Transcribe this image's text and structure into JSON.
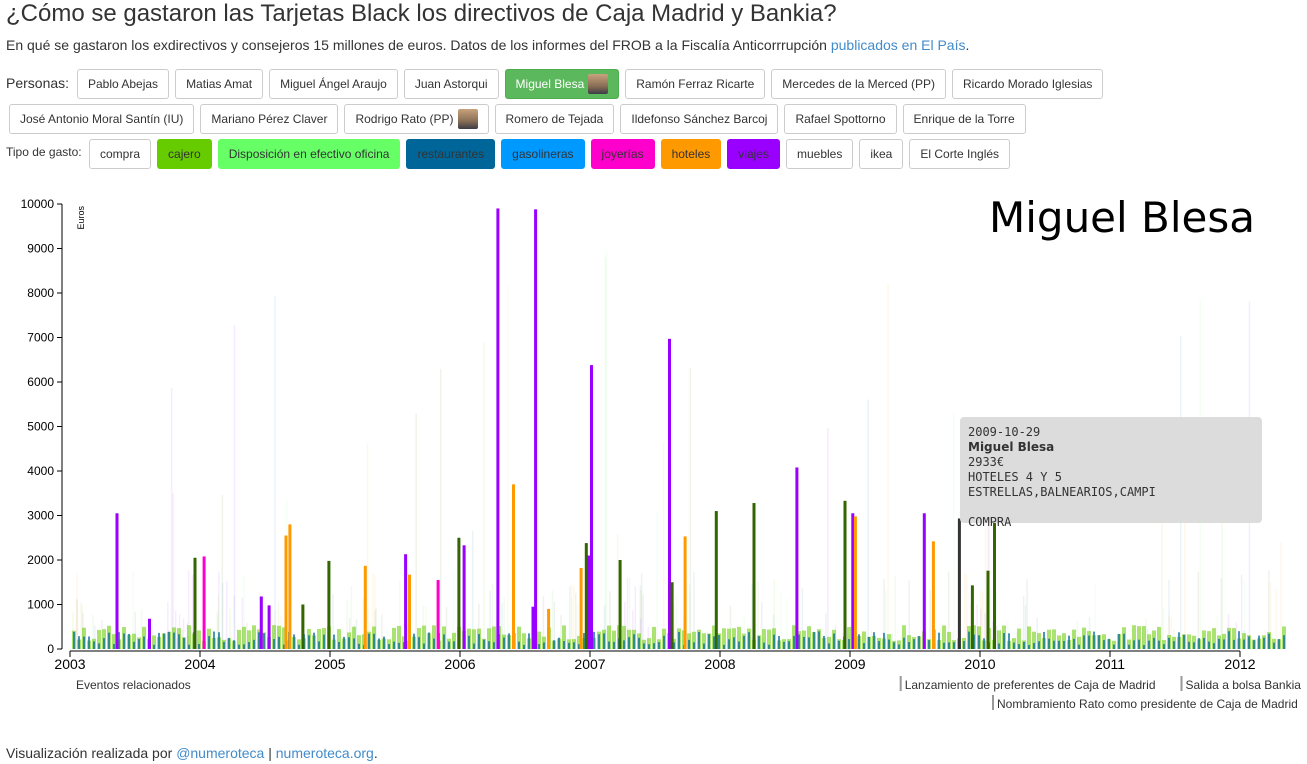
{
  "header": {
    "title": "¿Cómo se gastaron las Tarjetas Black los directivos de Caja Madrid y Bankia?",
    "subtitle_text": "En qué se gastaron los exdirectivos y consejeros 15 millones de euros. Datos de los informes del FROB a la Fiscalía Anticorrrupción ",
    "subtitle_link": "publicados en El País",
    "subtitle_end": "."
  },
  "personas": {
    "label": "Personas:",
    "items": [
      "Pablo Abejas",
      "Matias Amat",
      "Miguel Ángel Araujo",
      "Juan Astorqui",
      "Miguel Blesa",
      "Ramón Ferraz Ricarte",
      "Mercedes de la Merced (PP)",
      "Ricardo Morado Iglesias",
      "José Antonio Moral Santín (IU)",
      "Mariano Pérez Claver",
      "Rodrigo Rato (PP)",
      "Romero de Tejada",
      "Ildefonso Sánchez Barcoj",
      "Rafael Spottorno",
      "Enrique de la Torre"
    ],
    "selected": "Miguel Blesa"
  },
  "gasto": {
    "label": "Tipo de gasto:",
    "items": [
      {
        "label": "compra",
        "color": "#ffffff",
        "text": "#333333"
      },
      {
        "label": "cajero",
        "color": "#66cc00",
        "text": "#333333"
      },
      {
        "label": "Disposición en efectivo oficina",
        "color": "#66ff66",
        "text": "#333333"
      },
      {
        "label": "restaurantes",
        "color": "#006699",
        "text": "#333333"
      },
      {
        "label": "gasolineras",
        "color": "#0099ff",
        "text": "#333333"
      },
      {
        "label": "joyerías",
        "color": "#ff00cc",
        "text": "#333333"
      },
      {
        "label": "hoteles",
        "color": "#ff9900",
        "text": "#333333"
      },
      {
        "label": "viajes",
        "color": "#9900ff",
        "text": "#333333"
      },
      {
        "label": "muebles",
        "color": "#ffffff",
        "text": "#333333"
      },
      {
        "label": "ikea",
        "color": "#ffffff",
        "text": "#333333"
      },
      {
        "label": "El Corte Inglés",
        "color": "#ffffff",
        "text": "#333333"
      }
    ]
  },
  "chart_data": {
    "type": "bar",
    "title": "Miguel Blesa",
    "ylabel": "Euros",
    "ylim": [
      0,
      10000
    ],
    "yticks": [
      0,
      1000,
      2000,
      3000,
      4000,
      5000,
      6000,
      7000,
      8000,
      9000,
      10000
    ],
    "xlim": [
      2003,
      2012.4
    ],
    "xticks": [
      "2003",
      "2004",
      "2005",
      "2006",
      "2007",
      "2008",
      "2009",
      "2010",
      "2011",
      "2012"
    ],
    "colors": {
      "compra": "#336600",
      "cajero": "#66cc00",
      "efectivo": "#66ff66",
      "restaurantes": "#006699",
      "gasolineras": "#0099ff",
      "joyerias": "#ff00cc",
      "hoteles": "#ff9900",
      "viajes": "#9900ff",
      "selected": "#333333"
    },
    "bars": [
      {
        "x": 2003.35,
        "value": 3050,
        "category": "viajes"
      },
      {
        "x": 2003.6,
        "value": 680,
        "category": "viajes"
      },
      {
        "x": 2003.95,
        "value": 2050,
        "category": "compra"
      },
      {
        "x": 2004.02,
        "value": 2080,
        "category": "joyerias"
      },
      {
        "x": 2004.46,
        "value": 1180,
        "category": "viajes"
      },
      {
        "x": 2004.52,
        "value": 980,
        "category": "viajes"
      },
      {
        "x": 2004.65,
        "value": 2550,
        "category": "hoteles"
      },
      {
        "x": 2004.68,
        "value": 2800,
        "category": "hoteles"
      },
      {
        "x": 2004.78,
        "value": 1000,
        "category": "compra"
      },
      {
        "x": 2004.98,
        "value": 1980,
        "category": "compra"
      },
      {
        "x": 2005.26,
        "value": 1870,
        "category": "hoteles"
      },
      {
        "x": 2005.57,
        "value": 2130,
        "category": "viajes"
      },
      {
        "x": 2005.6,
        "value": 1670,
        "category": "hoteles"
      },
      {
        "x": 2005.82,
        "value": 1550,
        "category": "joyerias"
      },
      {
        "x": 2005.98,
        "value": 2500,
        "category": "compra"
      },
      {
        "x": 2006.02,
        "value": 2330,
        "category": "viajes"
      },
      {
        "x": 2006.28,
        "value": 9900,
        "category": "viajes"
      },
      {
        "x": 2006.4,
        "value": 3700,
        "category": "hoteles"
      },
      {
        "x": 2006.55,
        "value": 950,
        "category": "viajes"
      },
      {
        "x": 2006.57,
        "value": 9880,
        "category": "viajes"
      },
      {
        "x": 2006.67,
        "value": 900,
        "category": "hoteles"
      },
      {
        "x": 2006.92,
        "value": 1820,
        "category": "hoteles"
      },
      {
        "x": 2006.96,
        "value": 2380,
        "category": "compra"
      },
      {
        "x": 2006.98,
        "value": 2100,
        "category": "viajes"
      },
      {
        "x": 2007.0,
        "value": 6380,
        "category": "viajes"
      },
      {
        "x": 2007.22,
        "value": 2000,
        "category": "compra"
      },
      {
        "x": 2007.6,
        "value": 6970,
        "category": "viajes"
      },
      {
        "x": 2007.62,
        "value": 1500,
        "category": "compra"
      },
      {
        "x": 2007.72,
        "value": 2530,
        "category": "hoteles"
      },
      {
        "x": 2007.96,
        "value": 3100,
        "category": "compra"
      },
      {
        "x": 2008.25,
        "value": 3280,
        "category": "compra"
      },
      {
        "x": 2008.58,
        "value": 4080,
        "category": "viajes"
      },
      {
        "x": 2008.95,
        "value": 3330,
        "category": "compra"
      },
      {
        "x": 2009.01,
        "value": 3050,
        "category": "viajes"
      },
      {
        "x": 2009.03,
        "value": 2980,
        "category": "hoteles"
      },
      {
        "x": 2009.56,
        "value": 3050,
        "category": "viajes"
      },
      {
        "x": 2009.63,
        "value": 2420,
        "category": "hoteles"
      },
      {
        "x": 2009.83,
        "value": 2933,
        "category": "selected"
      },
      {
        "x": 2009.93,
        "value": 1430,
        "category": "compra"
      },
      {
        "x": 2010.05,
        "value": 1760,
        "category": "compra"
      },
      {
        "x": 2010.1,
        "value": 2970,
        "category": "compra"
      }
    ],
    "events_label": "Eventos relacionados",
    "events": [
      {
        "x": 2009.39,
        "label": "Lanzamiento de preferentes de Caja de Madrid",
        "row": 0
      },
      {
        "x": 2011.55,
        "label": "Salida a bolsa Bankia",
        "row": 0
      },
      {
        "x": 2010.1,
        "label": "Nombramiento Rato como presidente de Caja de Madrid",
        "row": 1
      }
    ]
  },
  "tooltip": {
    "date": "2009-10-29",
    "name": "Miguel Blesa",
    "amount": "2933€",
    "merchant": "HOTELES 4 Y 5 ESTRELLAS,BALNEARIOS,CAMPI",
    "type": "COMPRA"
  },
  "footer": {
    "prefix": "Visualización realizada por ",
    "link1": "@numeroteca",
    "sep": " | ",
    "link2": "numeroteca.org",
    "end": "."
  }
}
